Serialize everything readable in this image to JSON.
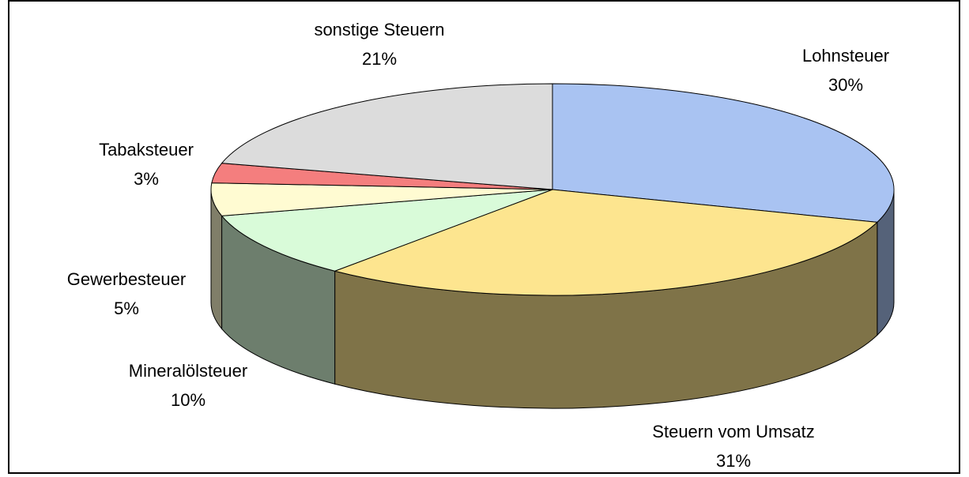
{
  "chart_data": {
    "type": "pie3d",
    "categories": [
      "Lohnsteuer",
      "Steuern vom Umsatz",
      "Mineralölsteuer",
      "Gewerbesteuer",
      "Tabaksteuer",
      "sonstige Steuern"
    ],
    "values": [
      30,
      31,
      10,
      5,
      3,
      21
    ],
    "value_labels": [
      "30%",
      "31%",
      "10%",
      "5%",
      "3%",
      "21%"
    ],
    "colors": [
      "#a9c3f2",
      "#fde58f",
      "#d9fbd9",
      "#fffbd2",
      "#f47e7e",
      "#dcdcdc"
    ]
  }
}
